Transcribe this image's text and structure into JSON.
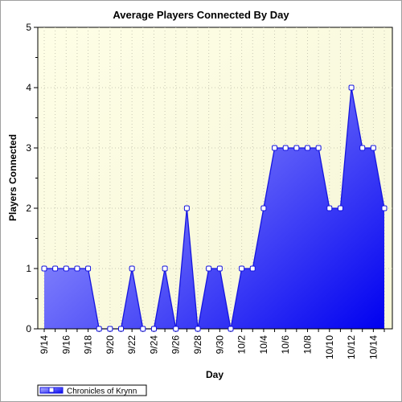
{
  "chart_data": {
    "type": "area",
    "title": "Average Players Connected By Day",
    "xlabel": "Day",
    "ylabel": "Players Connected",
    "ylim": [
      0,
      5
    ],
    "yticks": [
      0,
      1,
      2,
      3,
      4,
      5
    ],
    "x": [
      "9/14",
      "9/15",
      "9/16",
      "9/17",
      "9/18",
      "9/19",
      "9/20",
      "9/21",
      "9/22",
      "9/23",
      "9/24",
      "9/25",
      "9/26",
      "9/27",
      "9/28",
      "9/29",
      "9/30",
      "10/1",
      "10/2",
      "10/3",
      "10/4",
      "10/5",
      "10/6",
      "10/7",
      "10/8",
      "10/9",
      "10/10",
      "10/11",
      "10/12",
      "10/13",
      "10/14",
      "10/15"
    ],
    "xtick_labels": [
      "9/14",
      "9/16",
      "9/18",
      "9/20",
      "9/22",
      "9/24",
      "9/26",
      "9/28",
      "9/30",
      "10/2",
      "10/4",
      "10/6",
      "10/8",
      "10/10",
      "10/12",
      "10/14"
    ],
    "series": [
      {
        "name": "Chronicles of Krynn",
        "values": [
          1,
          1,
          1,
          1,
          1,
          0,
          0,
          0,
          1,
          0,
          0,
          1,
          0,
          2,
          0,
          1,
          1,
          0,
          1,
          1,
          2,
          3,
          3,
          3,
          3,
          3,
          2,
          2,
          4,
          3,
          3,
          2
        ]
      }
    ],
    "grid": true,
    "legend_position": "bottom-left",
    "colors": {
      "plot_background_top": "#fefee6",
      "plot_background_bottom": "#f8f8dc",
      "area_light": "#a8a8ff",
      "area_dark": "#0000f0",
      "line": "#1515e0",
      "marker_fill": "#ffffff"
    }
  }
}
